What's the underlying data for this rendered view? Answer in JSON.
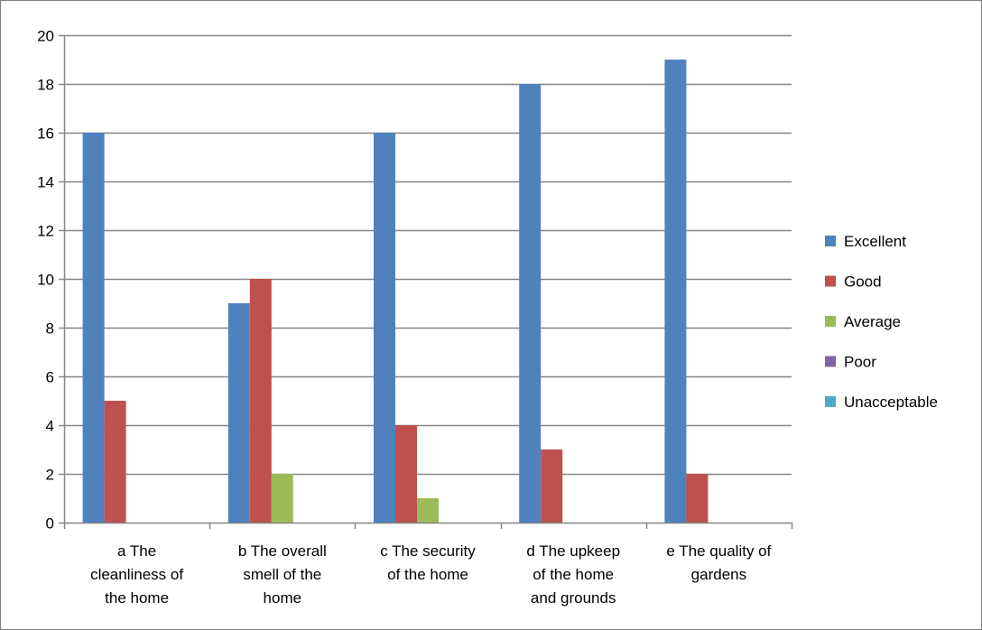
{
  "chart_data": {
    "type": "bar",
    "categories": [
      [
        "a The",
        "cleanliness of",
        "the home"
      ],
      [
        "b The overall",
        "smell of the",
        "home"
      ],
      [
        "c The security",
        "of the home"
      ],
      [
        "d The upkeep",
        "of the home",
        "and grounds"
      ],
      [
        "e The quality of",
        "gardens"
      ]
    ],
    "series": [
      {
        "name": "Excellent",
        "values": [
          16,
          9,
          16,
          18,
          19
        ],
        "color": "#4f81bd"
      },
      {
        "name": "Good",
        "values": [
          5,
          10,
          4,
          3,
          2
        ],
        "color": "#c0504d"
      },
      {
        "name": "Average",
        "values": [
          0,
          2,
          1,
          0,
          0
        ],
        "color": "#9bbb59"
      },
      {
        "name": "Poor",
        "values": [
          0,
          0,
          0,
          0,
          0
        ],
        "color": "#8064a2"
      },
      {
        "name": "Unacceptable",
        "values": [
          0,
          0,
          0,
          0,
          0
        ],
        "color": "#4bacc6"
      }
    ],
    "yticks": [
      "0",
      "2",
      "4",
      "6",
      "8",
      "10",
      "12",
      "14",
      "16",
      "18",
      "20"
    ],
    "ylim": [
      0,
      20
    ],
    "grid": true,
    "legend_position": "right"
  },
  "colors": {
    "gridline": "#868686",
    "axis": "#868686",
    "border": "#7f7f7f"
  }
}
